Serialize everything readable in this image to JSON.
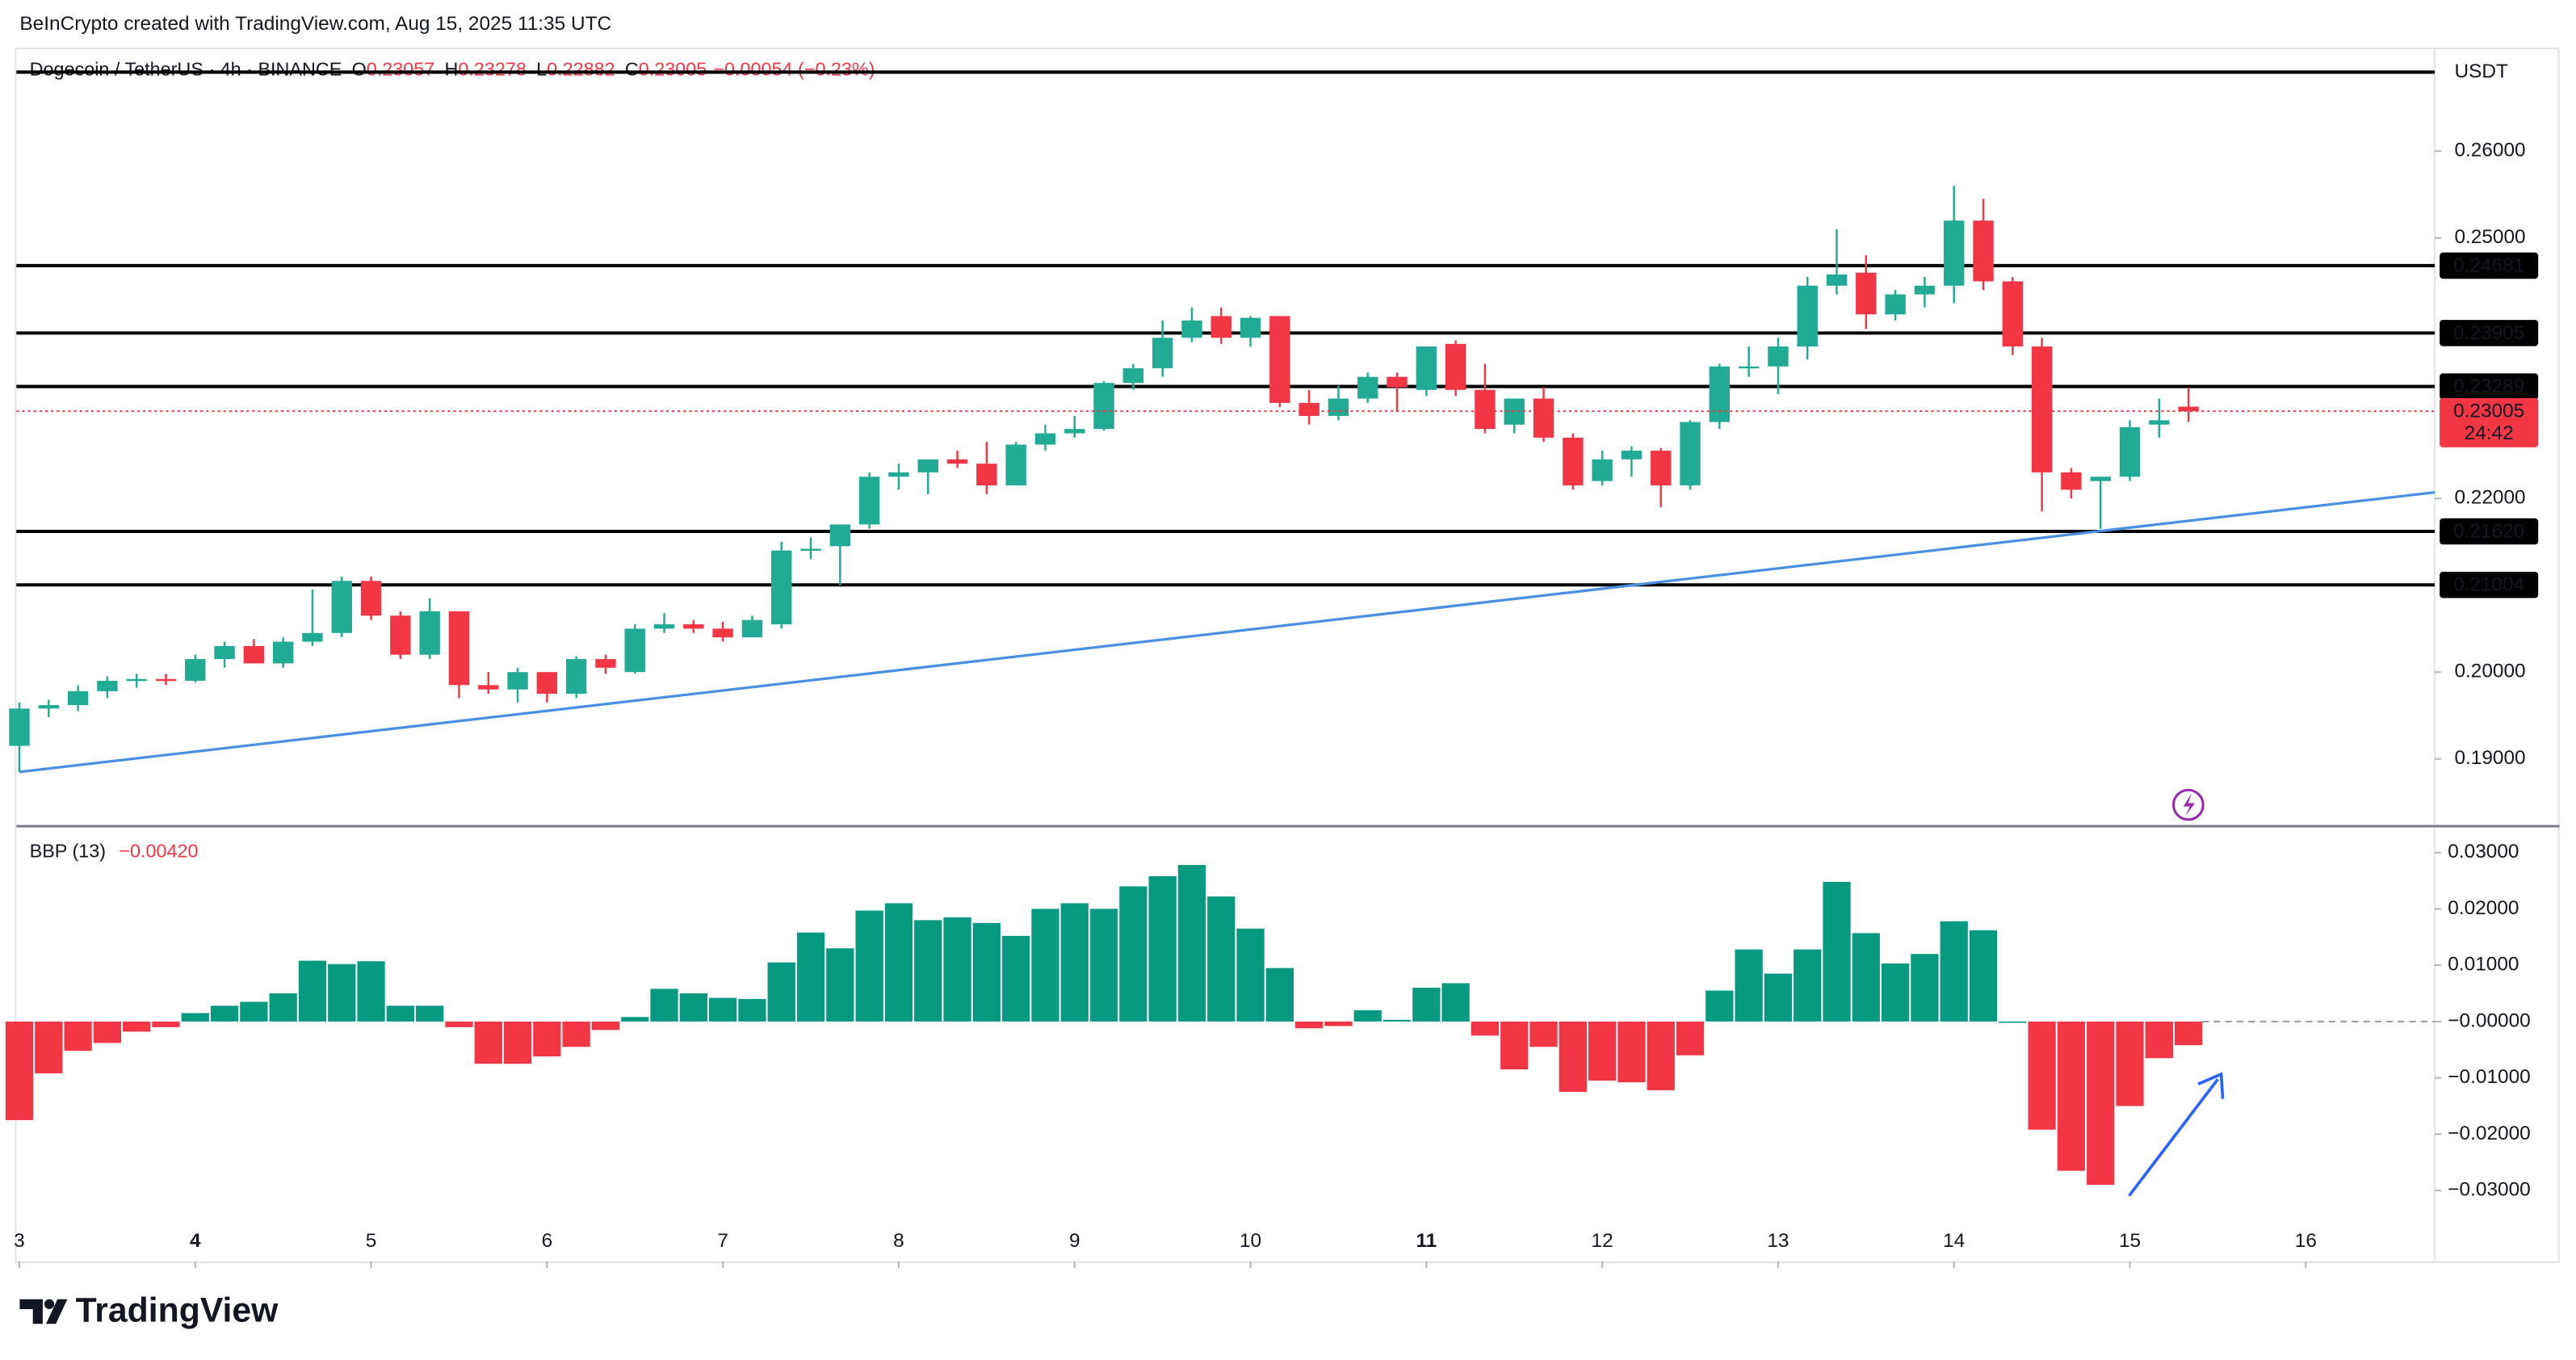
{
  "header": {
    "credit": "BeInCrypto created with TradingView.com, Aug 15, 2025 11:35 UTC",
    "logo": "TradingView"
  },
  "chart_data": [
    {
      "type": "candlestick",
      "title": "Dogecoin / TetherUS · 4h · BINANCE",
      "ohlc_keys": [
        "O",
        "H",
        "L",
        "C"
      ],
      "change_label": "−0.00054 (−0.23%)",
      "currency": "USDT",
      "up_color": "#22ab94",
      "down_color": "#f23645",
      "open": [
        0.1915,
        0.1958,
        0.1962,
        0.1978,
        0.199,
        0.1992,
        0.199,
        0.2015,
        0.203,
        0.201,
        0.2035,
        0.2045,
        0.2105,
        0.2065,
        0.202,
        0.207,
        0.1985,
        0.198,
        0.2,
        0.1975,
        0.2015,
        0.2,
        0.205,
        0.2055,
        0.205,
        0.204,
        0.2055,
        0.214,
        0.2145,
        0.217,
        0.2225,
        0.223,
        0.2245,
        0.224,
        0.2215,
        0.2262,
        0.2275,
        0.228,
        0.2333,
        0.235,
        0.2385,
        0.241,
        0.2385,
        0.241,
        0.231,
        0.2295,
        0.2315,
        0.234,
        0.2325,
        0.2378,
        0.2325,
        0.2285,
        0.2315,
        0.227,
        0.222,
        0.2245,
        0.2255,
        0.2215,
        0.2288,
        0.2352,
        0.2352,
        0.2375,
        0.2445,
        0.246,
        0.2412,
        0.2435,
        0.2445,
        0.252,
        0.245,
        0.2375,
        0.223,
        0.222,
        0.2225,
        0.2285,
        0.23057
      ],
      "high": [
        0.1965,
        0.1968,
        0.1985,
        0.1995,
        0.1998,
        0.1998,
        0.202,
        0.2035,
        0.2038,
        0.204,
        0.2095,
        0.211,
        0.211,
        0.207,
        0.2085,
        0.207,
        0.2,
        0.2005,
        0.2,
        0.2018,
        0.202,
        0.2055,
        0.2068,
        0.206,
        0.2058,
        0.2065,
        0.215,
        0.2155,
        0.217,
        0.223,
        0.224,
        0.2245,
        0.2255,
        0.2265,
        0.2265,
        0.2285,
        0.2295,
        0.2335,
        0.2355,
        0.2405,
        0.242,
        0.242,
        0.241,
        0.241,
        0.2325,
        0.233,
        0.2345,
        0.2345,
        0.2375,
        0.2382,
        0.2355,
        0.2315,
        0.2328,
        0.2275,
        0.2255,
        0.226,
        0.2258,
        0.229,
        0.2355,
        0.2375,
        0.2385,
        0.2455,
        0.251,
        0.248,
        0.244,
        0.2455,
        0.256,
        0.2545,
        0.2455,
        0.2385,
        0.2235,
        0.2225,
        0.229,
        0.2315,
        0.23278
      ],
      "low": [
        0.1885,
        0.1948,
        0.1955,
        0.197,
        0.1982,
        0.1985,
        0.1988,
        0.2005,
        0.201,
        0.2005,
        0.203,
        0.204,
        0.206,
        0.2015,
        0.2015,
        0.197,
        0.1975,
        0.1965,
        0.1965,
        0.197,
        0.1998,
        0.1998,
        0.2045,
        0.2045,
        0.2035,
        0.204,
        0.205,
        0.213,
        0.21,
        0.2165,
        0.221,
        0.2205,
        0.2235,
        0.2205,
        0.2215,
        0.2255,
        0.227,
        0.2278,
        0.2325,
        0.234,
        0.238,
        0.2378,
        0.2375,
        0.2305,
        0.2285,
        0.229,
        0.231,
        0.23,
        0.2318,
        0.2318,
        0.2275,
        0.2275,
        0.2265,
        0.221,
        0.2215,
        0.2225,
        0.219,
        0.221,
        0.228,
        0.234,
        0.232,
        0.236,
        0.2435,
        0.2395,
        0.2405,
        0.242,
        0.2425,
        0.244,
        0.2365,
        0.2185,
        0.22,
        0.2165,
        0.222,
        0.227,
        0.22882
      ],
      "close": [
        0.1958,
        0.1962,
        0.1978,
        0.199,
        0.1992,
        0.199,
        0.2015,
        0.203,
        0.201,
        0.2035,
        0.2045,
        0.2105,
        0.2065,
        0.202,
        0.207,
        0.1985,
        0.198,
        0.2,
        0.1975,
        0.2015,
        0.2005,
        0.205,
        0.2055,
        0.205,
        0.204,
        0.206,
        0.214,
        0.2142,
        0.217,
        0.2225,
        0.223,
        0.2245,
        0.224,
        0.2215,
        0.2262,
        0.2275,
        0.228,
        0.2333,
        0.235,
        0.2385,
        0.2405,
        0.2385,
        0.2408,
        0.231,
        0.2295,
        0.2315,
        0.234,
        0.2328,
        0.2375,
        0.2325,
        0.228,
        0.2315,
        0.227,
        0.2215,
        0.2245,
        0.2255,
        0.2215,
        0.2288,
        0.2352,
        0.2352,
        0.2375,
        0.2445,
        0.2458,
        0.2412,
        0.2435,
        0.2445,
        0.252,
        0.245,
        0.2375,
        0.223,
        0.221,
        0.2225,
        0.2282,
        0.229,
        0.23005
      ],
      "countdown": "24:42",
      "levels": [
        {
          "value": 0.2691
        },
        {
          "value": 0.24681,
          "label": "0.24681"
        },
        {
          "value": 0.23905,
          "label": "0.23905"
        },
        {
          "value": 0.23289,
          "label": "0.23289"
        },
        {
          "value": 0.2162,
          "label": "0.21620"
        },
        {
          "value": 0.21004,
          "label": "0.21004"
        }
      ],
      "trendline": {
        "color": "#4a90e2",
        "x": [
          0,
          82.4
        ],
        "y": [
          0.1885,
          0.2207
        ]
      },
      "xlim": [
        -0.1,
        82.4
      ],
      "ylim": [
        0.18244,
        0.27173
      ],
      "yticks": [
        {
          "value": 0.19,
          "label": "0.19000"
        },
        {
          "value": 0.2,
          "label": "0.20000"
        },
        {
          "value": 0.22,
          "label": "0.22000"
        },
        {
          "value": 0.25,
          "label": "0.25000"
        },
        {
          "value": 0.26,
          "label": "0.26000"
        }
      ]
    },
    {
      "type": "bar",
      "title": "BBP (13)",
      "last_value_label": "−0.00420",
      "up_color": "#089981",
      "down_color": "#f23645",
      "values": [
        -0.0175,
        -0.0092,
        -0.0052,
        -0.0038,
        -0.0018,
        -0.001,
        0.0015,
        0.0028,
        0.0035,
        0.005,
        0.0108,
        0.0102,
        0.0107,
        0.0028,
        0.0028,
        -0.001,
        -0.0075,
        -0.0075,
        -0.0062,
        -0.0045,
        -0.0015,
        0.0008,
        0.0058,
        0.005,
        0.0042,
        0.004,
        0.0105,
        0.0158,
        0.013,
        0.0197,
        0.021,
        0.018,
        0.0185,
        0.0175,
        0.0152,
        0.02,
        0.021,
        0.02,
        0.024,
        0.0258,
        0.0278,
        0.0222,
        0.0165,
        0.0095,
        -0.0012,
        -0.0008,
        0.002,
        0.0003,
        0.006,
        0.0068,
        -0.0025,
        -0.0085,
        -0.0045,
        -0.0125,
        -0.0105,
        -0.0108,
        -0.0122,
        -0.006,
        0.0055,
        0.0128,
        0.0085,
        0.0128,
        0.0248,
        0.0157,
        0.0103,
        0.012,
        0.0178,
        0.0162,
        0,
        -0.0192,
        -0.0265,
        -0.029,
        -0.015,
        -0.0065,
        -0.0042
      ],
      "xlim": [
        -0.1,
        82.4
      ],
      "ylim": [
        -0.0426,
        0.0341
      ],
      "yticks": [
        {
          "value": 0.03,
          "label": "0.03000"
        },
        {
          "value": 0.02,
          "label": "0.02000"
        },
        {
          "value": 0.01,
          "label": "0.01000"
        },
        {
          "value": 0,
          "label": "−0.00000"
        },
        {
          "value": -0.01,
          "label": "−0.01000"
        },
        {
          "value": -0.02,
          "label": "−0.02000"
        },
        {
          "value": -0.03,
          "label": "−0.03000"
        }
      ],
      "xticks": [
        {
          "value": 0,
          "label": "3"
        },
        {
          "value": 6,
          "label": "4",
          "bold": true
        },
        {
          "value": 12,
          "label": "5"
        },
        {
          "value": 18,
          "label": "6"
        },
        {
          "value": 24,
          "label": "7"
        },
        {
          "value": 30,
          "label": "8"
        },
        {
          "value": 36,
          "label": "9"
        },
        {
          "value": 42,
          "label": "10"
        },
        {
          "value": 48,
          "label": "11",
          "bold": true
        },
        {
          "value": 54,
          "label": "12"
        },
        {
          "value": 60,
          "label": "13"
        },
        {
          "value": 66,
          "label": "14"
        },
        {
          "value": 72,
          "label": "15"
        },
        {
          "value": 78,
          "label": "16"
        }
      ]
    }
  ]
}
